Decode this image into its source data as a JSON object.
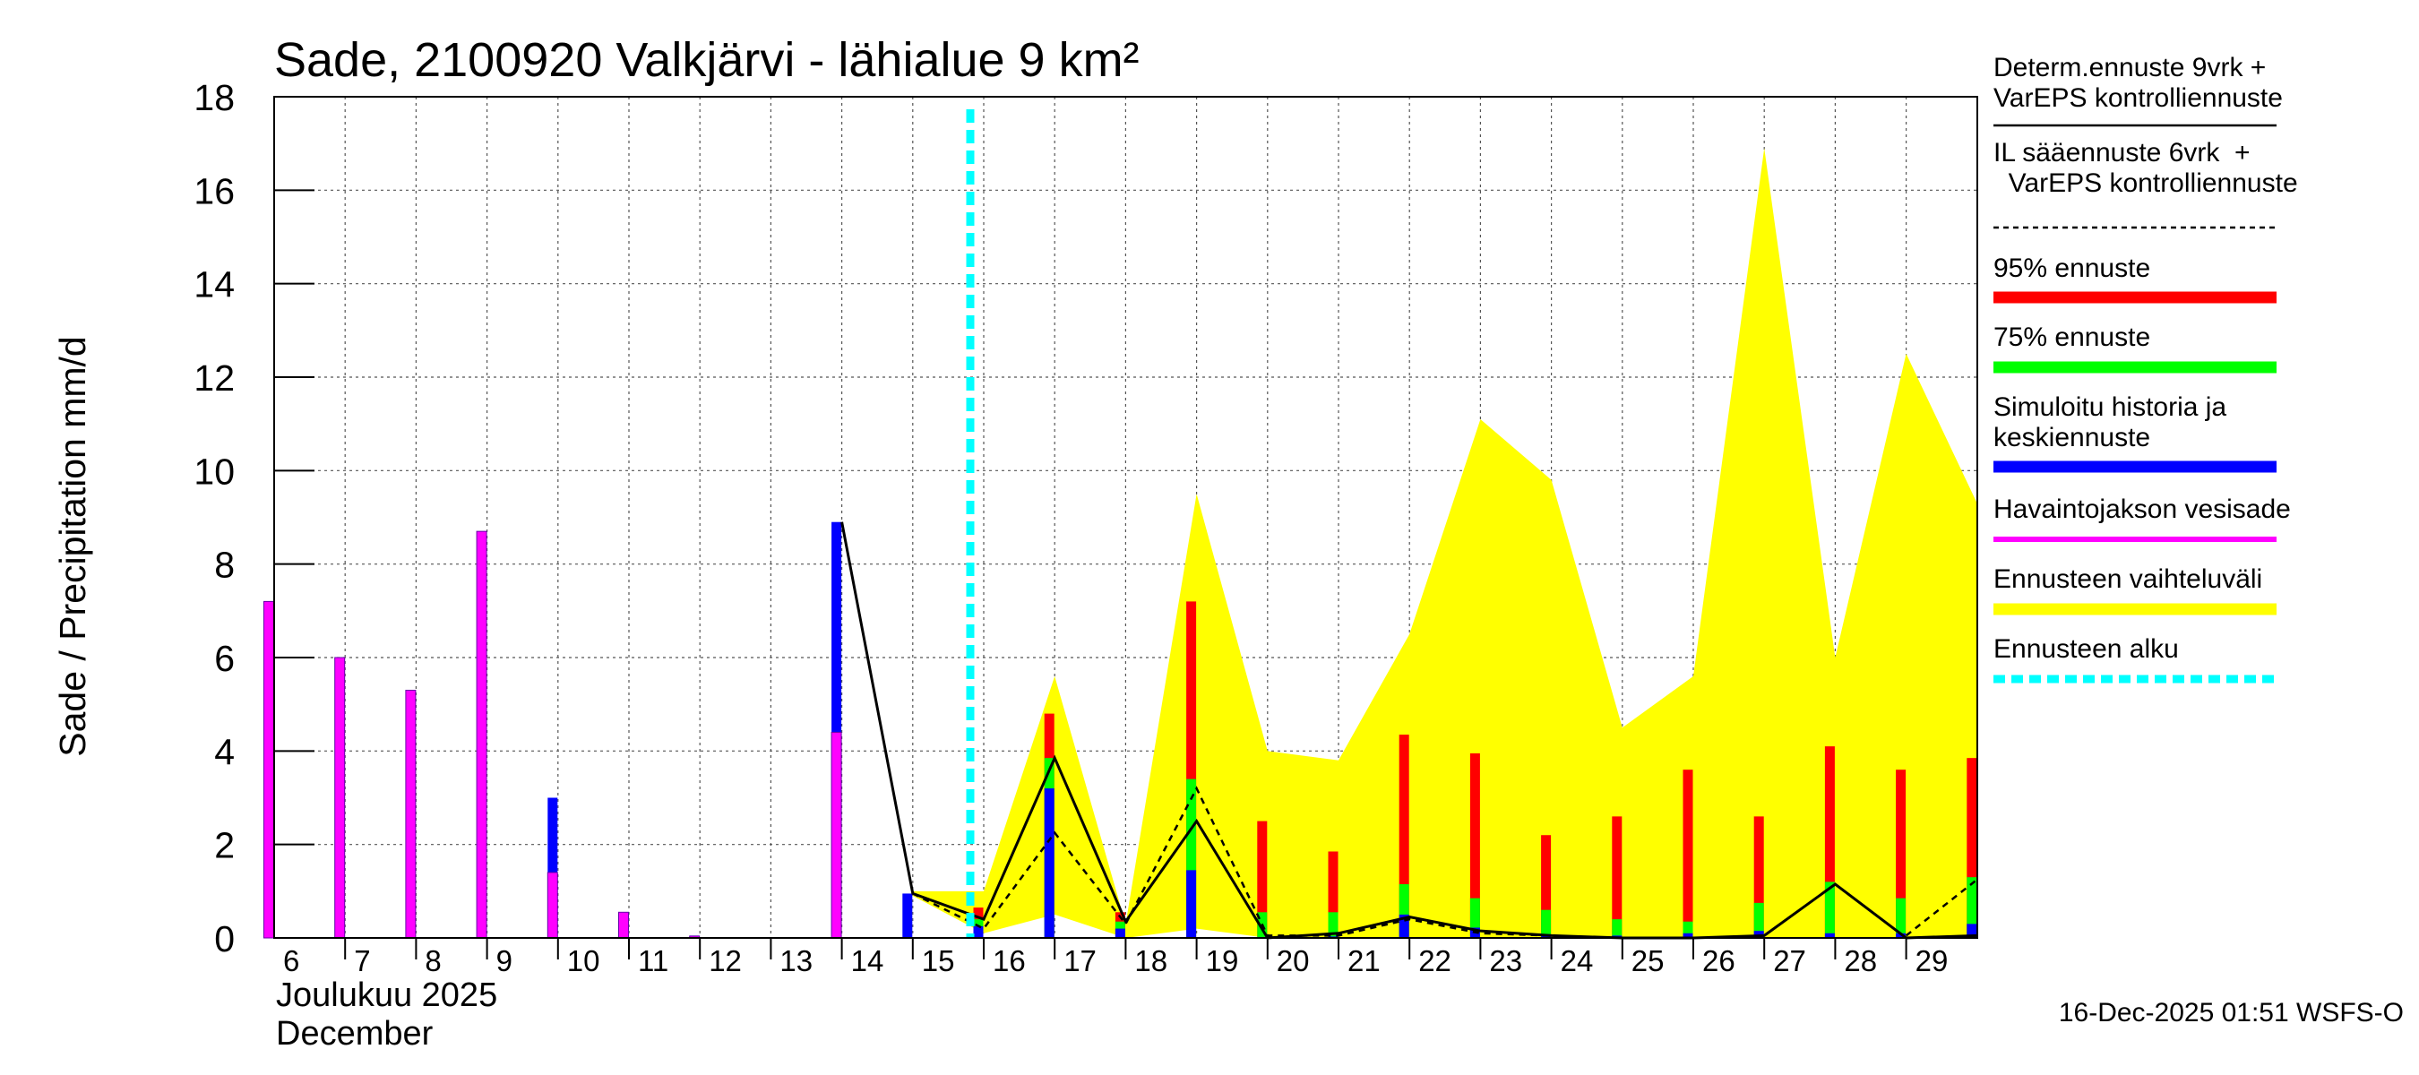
{
  "chart_data": {
    "type": "bar",
    "title": "Sade, 2100920 Valkjärvi - lähialue 9 km²",
    "ylabel": "Sade / Precipitation   mm/d",
    "ylim": [
      0,
      18
    ],
    "yticks": [
      0,
      2,
      4,
      6,
      8,
      10,
      12,
      14,
      16,
      18
    ],
    "grid": true,
    "legend_position": "right",
    "days": [
      "6",
      "7",
      "8",
      "9",
      "10",
      "11",
      "12",
      "13",
      "14",
      "15",
      "16",
      "17",
      "18",
      "19",
      "20",
      "21",
      "22",
      "23",
      "24",
      "25",
      "26",
      "27",
      "28",
      "29"
    ],
    "month_label_fi": "Joulukuu  2025",
    "month_label_en": "December",
    "forecast_start_day": 16,
    "observed_precipitation": {
      "days": [
        6,
        7,
        8,
        9,
        10,
        11,
        12,
        14
      ],
      "values": [
        7.2,
        6.0,
        5.3,
        8.7,
        1.4,
        0.55,
        0.04,
        4.4
      ]
    },
    "simulated_history_and_median": {
      "days": [
        10,
        12,
        14,
        15,
        16,
        17,
        18,
        19,
        20,
        21,
        22,
        23,
        24,
        25,
        26,
        27,
        28,
        29,
        30
      ],
      "values": [
        3.0,
        0.05,
        8.9,
        0.95,
        0.25,
        3.2,
        0.2,
        1.45,
        0.02,
        0.03,
        0.5,
        0.22,
        0.08,
        0.05,
        0.1,
        0.15,
        0.1,
        0.1,
        0.3
      ]
    },
    "forecast_75pct": {
      "days": [
        16,
        17,
        18,
        19,
        20,
        21,
        22,
        23,
        24,
        25,
        26,
        27,
        28,
        29,
        30
      ],
      "values": [
        0.4,
        3.85,
        0.35,
        3.4,
        0.55,
        0.55,
        1.15,
        0.85,
        0.6,
        0.4,
        0.35,
        0.75,
        1.2,
        0.85,
        1.3
      ]
    },
    "forecast_95pct": {
      "days": [
        16,
        17,
        18,
        19,
        20,
        21,
        22,
        23,
        24,
        25,
        26,
        27,
        28,
        29,
        30
      ],
      "values": [
        0.65,
        4.8,
        0.55,
        7.2,
        2.5,
        1.85,
        4.35,
        3.95,
        2.2,
        2.6,
        3.6,
        2.6,
        4.1,
        3.6,
        3.85
      ]
    },
    "forecast_range": {
      "x": [
        15,
        16,
        17,
        18,
        19,
        20,
        21,
        22,
        23,
        24,
        25,
        26,
        27,
        28,
        29,
        30
      ],
      "upper": [
        1.0,
        1.0,
        5.6,
        0.3,
        9.5,
        4.0,
        3.8,
        6.5,
        11.1,
        9.8,
        4.5,
        5.6,
        16.9,
        6.0,
        12.5,
        9.3
      ],
      "lower": [
        0.9,
        0.1,
        0.5,
        0.0,
        0.2,
        0.0,
        0.0,
        0.0,
        0.0,
        0.0,
        0.0,
        0.0,
        0.0,
        0.0,
        0.0,
        0.0
      ]
    },
    "deterministic_forecast": {
      "x": [
        14,
        15,
        16,
        17,
        18,
        19,
        20,
        21,
        22,
        23,
        24,
        25,
        26,
        27,
        28,
        29,
        30
      ],
      "y": [
        8.9,
        0.95,
        0.4,
        3.85,
        0.35,
        2.5,
        0.0,
        0.1,
        0.45,
        0.15,
        0.05,
        0.0,
        0.0,
        0.05,
        1.15,
        0.0,
        0.05
      ]
    },
    "il_forecast": {
      "x": [
        15,
        16,
        17,
        18,
        19,
        20,
        21,
        22,
        23,
        24
      ],
      "y": [
        0.95,
        0.2,
        2.25,
        0.3,
        3.2,
        0.05,
        0.05,
        0.4,
        0.1,
        0.05
      ],
      "x2": [
        29,
        30
      ],
      "y2": [
        0.05,
        1.25
      ]
    },
    "colors": {
      "observed": "#ff00ff",
      "simulated": "#0000ff",
      "p75": "#00ff00",
      "p95": "#ff0000",
      "range": "#ffff00",
      "forecast_start": "#00ffff",
      "line": "#000000"
    }
  },
  "legend": [
    {
      "label": "Determ.ennuste 9vrk +\nVarEPS kontrolliennuste",
      "style": "solid-thin",
      "color": "#000000"
    },
    {
      "label": "IL sääennuste 6vrk  +\n  VarEPS kontrolliennuste",
      "style": "dashed-thin",
      "color": "#000000"
    },
    {
      "label": "95% ennuste",
      "style": "thick",
      "color": "#ff0000"
    },
    {
      "label": "75% ennuste",
      "style": "thick",
      "color": "#00ff00"
    },
    {
      "label": "Simuloitu historia ja\nkeskiennuste",
      "style": "thick",
      "color": "#0000ff"
    },
    {
      "label": "Havaintojakson vesisade",
      "style": "medium",
      "color": "#ff00ff"
    },
    {
      "label": "Ennusteen vaihteluväli",
      "style": "thick",
      "color": "#ffff00"
    },
    {
      "label": "Ennusteen alku",
      "style": "dashed-thick",
      "color": "#00ffff"
    }
  ],
  "footer": "16-Dec-2025 01:51 WSFS-O"
}
